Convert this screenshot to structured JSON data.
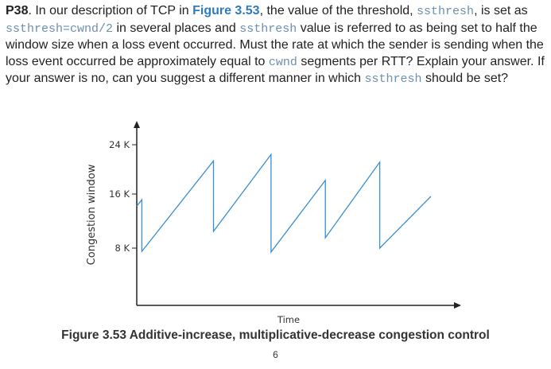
{
  "problem": {
    "label": "P38",
    "s1": ". In our description of TCP in ",
    "fig_ref": "Figure 3.53",
    "s2": ", the value of the threshold, ",
    "code1": "ssthresh",
    "s3": ", is set as ",
    "code2": "ssthresh=cwnd/2",
    "s4": " in several places and ",
    "code3": "ssthresh",
    "s5": " value is referred to as being set to half the window size when a loss event occurred. Must the rate at which the sender is sending when the loss event occurred be approximately equal to ",
    "code4": "cwnd",
    "s6": " segments per RTT? Explain your answer. If your answer is no, can you suggest a different manner in which ",
    "code5": "ssthresh",
    "s7": " should be set?"
  },
  "chart_data": {
    "type": "line",
    "xlabel": "Time",
    "ylabel": "Congestion window",
    "yticks": [
      "24 K",
      "16 K",
      "8 K"
    ],
    "ytick_values": [
      24,
      16,
      8
    ],
    "series": [
      {
        "x": [
          0,
          0.8,
          0.8,
          12,
          12,
          21,
          21,
          29.5,
          29.5,
          38,
          38,
          46
        ],
        "y": [
          14.5,
          15.5,
          7.5,
          21.5,
          10.6,
          22.5,
          7.4,
          18.5,
          9.6,
          21.3,
          8,
          16
        ]
      }
    ],
    "color": "#3a8fd0",
    "ylim": [
      0,
      27
    ],
    "xlim": [
      0,
      49
    ]
  },
  "figure": {
    "caption": "Figure 3.53 Additive-increase, multiplicative-decrease congestion control"
  },
  "page": {
    "number": "6"
  }
}
